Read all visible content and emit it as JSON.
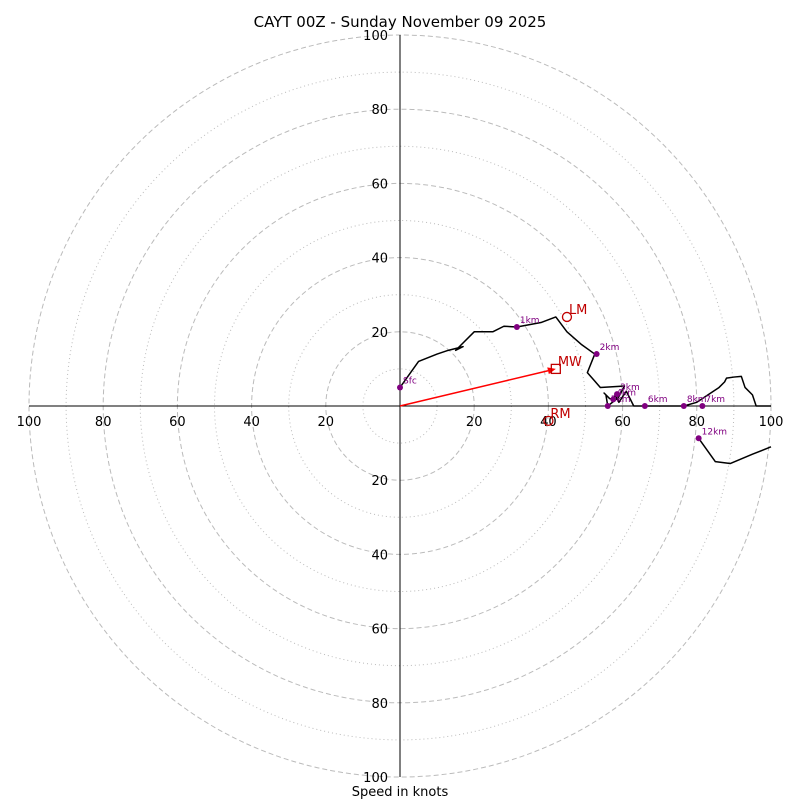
{
  "chart_data": {
    "type": "hodograph",
    "title": "CAYT 00Z - Sunday November 09 2025",
    "xlabel": "Speed in knots",
    "range": 100,
    "ring_labels": [
      "20",
      "40",
      "60",
      "80",
      "100"
    ],
    "trace": [
      [
        0,
        5
      ],
      [
        5,
        12
      ],
      [
        10,
        14
      ],
      [
        13,
        15
      ],
      [
        17,
        16
      ],
      [
        15,
        15
      ],
      [
        20,
        20
      ],
      [
        25,
        20
      ],
      [
        28,
        21.5
      ],
      [
        31.5,
        21.3
      ],
      [
        38,
        22.5
      ],
      [
        42,
        24
      ],
      [
        45,
        20
      ],
      [
        49,
        16.5
      ],
      [
        52.5,
        14
      ],
      [
        50.5,
        9
      ],
      [
        54,
        5
      ],
      [
        59,
        5.3
      ],
      [
        60.5,
        5.4
      ],
      [
        58.8,
        2.2
      ],
      [
        56,
        0
      ],
      [
        55.5,
        3
      ],
      [
        55,
        3.5
      ],
      [
        56.5,
        2
      ],
      [
        57.5,
        1.8
      ],
      [
        58,
        3
      ],
      [
        59,
        1
      ],
      [
        61,
        4
      ],
      [
        63,
        0
      ],
      [
        66,
        0
      ],
      [
        76.5,
        0
      ],
      [
        80,
        1
      ],
      [
        83,
        3
      ],
      [
        86,
        5
      ],
      [
        87.5,
        6.5
      ],
      [
        88,
        7.5
      ],
      [
        90,
        7.8
      ],
      [
        92,
        8
      ],
      [
        93,
        5
      ],
      [
        95,
        3
      ],
      [
        96,
        0
      ],
      [
        100,
        0
      ]
    ],
    "trace2": [
      [
        80.5,
        -8.7
      ],
      [
        85,
        -15
      ],
      [
        89,
        -15.5
      ],
      [
        95,
        -13
      ],
      [
        100,
        -11
      ]
    ],
    "levels": [
      {
        "label": "Sfc",
        "u": 0,
        "v": 5
      },
      {
        "label": "1km",
        "u": 31.5,
        "v": 21.3
      },
      {
        "label": "2km",
        "u": 53,
        "v": 14
      },
      {
        "label": "3km",
        "u": 58.5,
        "v": 3.2
      },
      {
        "label": "4km",
        "u": 57.5,
        "v": 1.8
      },
      {
        "label": "5km",
        "u": 56,
        "v": 0
      },
      {
        "label": "6km",
        "u": 66,
        "v": 0
      },
      {
        "label": "8km",
        "u": 76.5,
        "v": 0
      },
      {
        "label": "7km",
        "u": 81.5,
        "v": 0
      },
      {
        "label": "12km",
        "u": 80.5,
        "v": -8.7
      }
    ],
    "storm_motion": {
      "LM": {
        "label": "LM",
        "u": 45,
        "v": 24
      },
      "MW": {
        "label": "MW",
        "u": 42,
        "v": 10
      },
      "RM": {
        "label": "RM",
        "u": 40,
        "v": -4
      }
    },
    "arrow": {
      "u": 42,
      "v": 10
    },
    "colors": {
      "trace": "#000000",
      "level": "#800080",
      "marker": "#c00000",
      "arrow": "#ff0000",
      "grid": "#bbbbbb"
    }
  }
}
